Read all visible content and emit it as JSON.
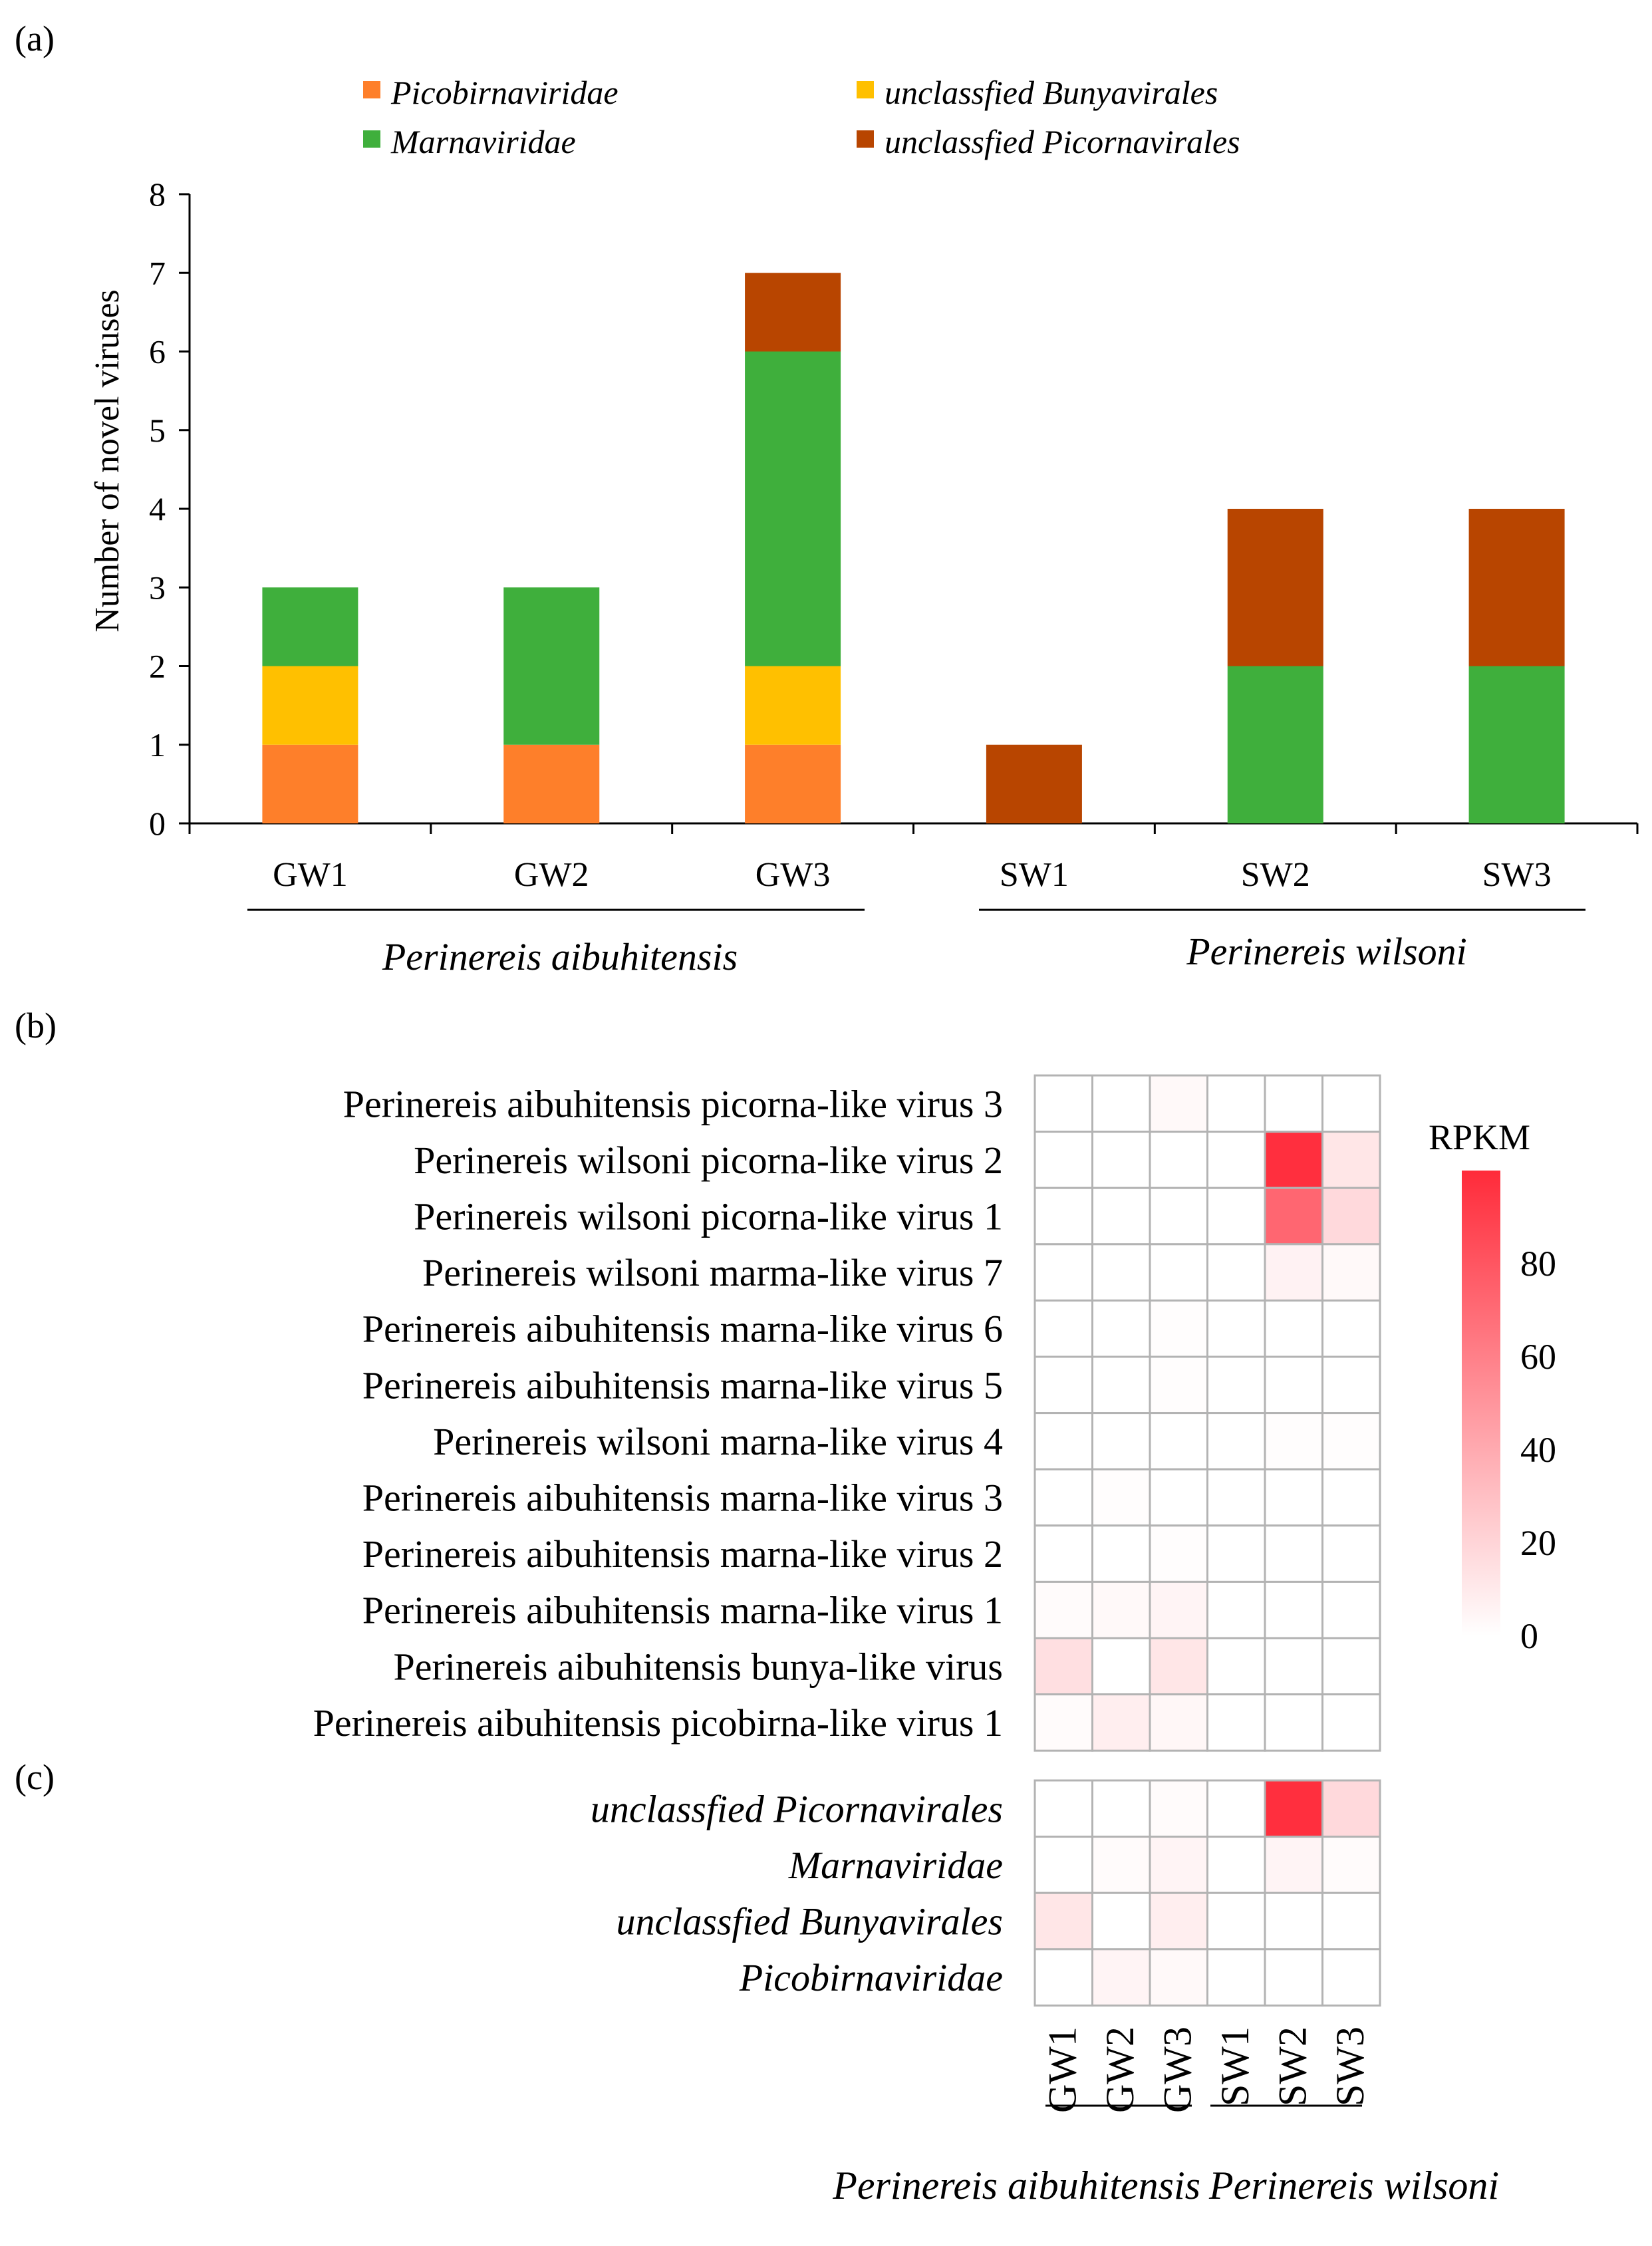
{
  "panels": {
    "a": "(a)",
    "b": "(b)",
    "c": "(c)"
  },
  "colors": {
    "Picobirnaviridae": "#fe7f2a",
    "unclassfied Bunyavirales": "#ffc000",
    "Marnaviridae": "#3faf3c",
    "unclassfied Picornavirales": "#b84500",
    "heat_high": "#ff2b3a",
    "grid": "#b3b3b3"
  },
  "group_labels": [
    "Perinereis aibuhitensis",
    "Perinereis wilsoni"
  ],
  "chart_data": [
    {
      "type": "bar",
      "stacked": true,
      "panel": "a",
      "ylabel": "Number of novel viruses",
      "xlabel": "",
      "ylim": [
        0,
        8
      ],
      "yticks": [
        0,
        1,
        2,
        3,
        4,
        5,
        6,
        7,
        8
      ],
      "categories": [
        "GW1",
        "GW2",
        "GW3",
        "SW1",
        "SW2",
        "SW3"
      ],
      "legend_position": "top",
      "series": [
        {
          "name": "Picobirnaviridae",
          "values": [
            1,
            1,
            1,
            0,
            0,
            0
          ]
        },
        {
          "name": "unclassfied Bunyavirales",
          "values": [
            1,
            0,
            1,
            0,
            0,
            0
          ]
        },
        {
          "name": "Marnaviridae",
          "values": [
            1,
            2,
            4,
            0,
            2,
            2
          ]
        },
        {
          "name": "unclassfied Picornavirales",
          "values": [
            0,
            0,
            1,
            1,
            2,
            2
          ]
        }
      ]
    },
    {
      "type": "heatmap",
      "panel": "b",
      "columns": [
        "GW1",
        "GW2",
        "GW3",
        "SW1",
        "SW2",
        "SW3"
      ],
      "rows": [
        "Perinereis aibuhitensis picorna-like virus 3",
        "Perinereis wilsoni picorna-like virus 2",
        "Perinereis wilsoni picorna-like virus 1",
        "Perinereis wilsoni marma-like virus 7",
        "Perinereis aibuhitensis marna-like virus 6",
        "Perinereis aibuhitensis marna-like virus 5",
        "Perinereis wilsoni marna-like virus 4",
        "Perinereis aibuhitensis marna-like virus 3",
        "Perinereis aibuhitensis marna-like virus 2",
        "Perinereis aibuhitensis marna-like virus 1",
        "Perinereis aibuhitensis bunya-like virus",
        "Perinereis aibuhitensis picobirna-like virus 1"
      ],
      "values": [
        [
          0,
          0,
          3,
          0,
          0,
          0
        ],
        [
          0,
          0,
          0,
          0,
          98,
          12
        ],
        [
          0,
          0,
          0,
          0,
          72,
          18
        ],
        [
          0,
          0,
          0,
          0,
          6,
          3
        ],
        [
          0,
          0,
          1,
          0,
          0,
          0
        ],
        [
          0,
          0,
          1,
          0,
          0,
          0
        ],
        [
          0,
          0,
          0,
          0,
          1,
          1
        ],
        [
          0,
          1,
          0,
          0,
          0,
          0
        ],
        [
          0,
          0,
          1,
          0,
          0,
          0
        ],
        [
          2,
          3,
          5,
          0,
          0,
          0
        ],
        [
          15,
          0,
          12,
          0,
          0,
          0
        ],
        [
          2,
          8,
          4,
          0,
          0,
          0
        ]
      ],
      "colorbar": {
        "title": "RPKM",
        "range": [
          0,
          100
        ],
        "ticks": [
          0,
          20,
          40,
          60,
          80
        ]
      }
    },
    {
      "type": "heatmap",
      "panel": "c",
      "columns": [
        "GW1",
        "GW2",
        "GW3",
        "SW1",
        "SW2",
        "SW3"
      ],
      "rows": [
        "unclassfied Picornavirales",
        "Marnaviridae",
        "unclassfied Bunyavirales",
        "Picobirnaviridae"
      ],
      "values": [
        [
          0,
          0,
          2,
          0,
          98,
          18
        ],
        [
          0,
          2,
          5,
          0,
          5,
          2
        ],
        [
          12,
          0,
          8,
          0,
          0,
          0
        ],
        [
          0,
          5,
          3,
          0,
          0,
          0
        ]
      ]
    }
  ]
}
